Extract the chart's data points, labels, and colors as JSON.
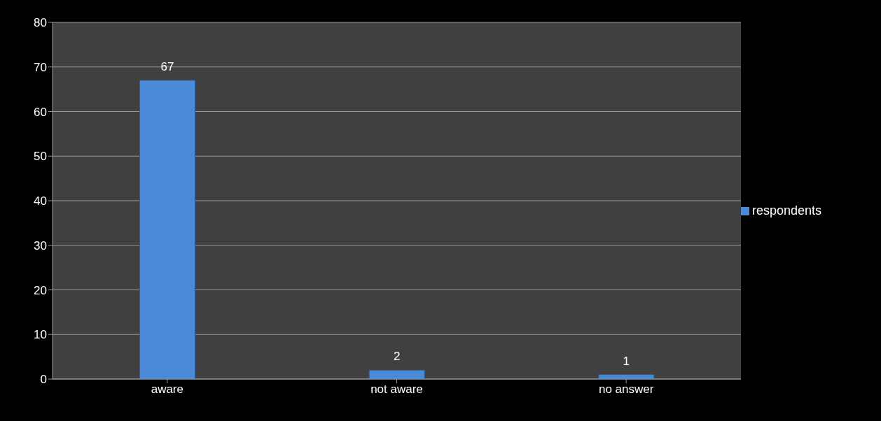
{
  "chart_data": {
    "type": "bar",
    "categories": [
      "aware",
      "not aware",
      "no answer"
    ],
    "series": [
      {
        "name": "respondents",
        "color": "#4a8ad8",
        "values": [
          67,
          2,
          1
        ]
      }
    ],
    "ylim": [
      0,
      80
    ],
    "yticks": [
      0,
      10,
      20,
      30,
      40,
      50,
      60,
      70,
      80
    ],
    "grid": "y",
    "legend": "right",
    "data_labels": true
  }
}
